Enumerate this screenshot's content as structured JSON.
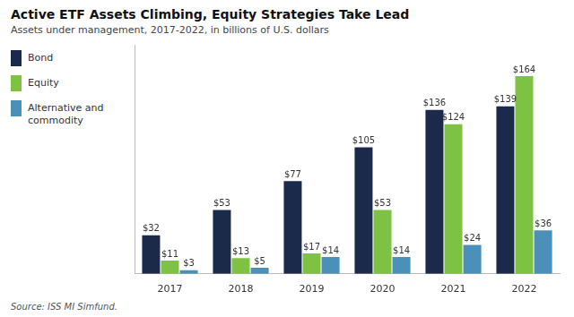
{
  "chart_data": {
    "type": "bar",
    "title": "Active ETF Assets Climbing, Equity Strategies Take Lead",
    "subtitle": "Assets under management, 2017-2022, in billions of U.S. dollars",
    "annotations": [
      "Source: ISS MI Simfund."
    ],
    "categories": [
      "2017",
      "2018",
      "2019",
      "2020",
      "2021",
      "2022"
    ],
    "series": [
      {
        "name": "Bond",
        "color": "#1b2a4a",
        "values": [
          32,
          53,
          77,
          105,
          136,
          139
        ],
        "value_labels": [
          "$32",
          "$53",
          "$77",
          "$105",
          "$136",
          "$139"
        ]
      },
      {
        "name": "Equity",
        "color": "#7dc242",
        "values": [
          11,
          13,
          17,
          53,
          124,
          164
        ],
        "value_labels": [
          "$11",
          "$13",
          "$17",
          "$53",
          "$124",
          "$164"
        ]
      },
      {
        "name": "Alternative and\ncommodity",
        "color": "#4a90b8",
        "values": [
          3,
          5,
          14,
          14,
          24,
          36
        ],
        "value_labels": [
          "$3",
          "$5",
          "$14",
          "$14",
          "$24",
          "$36"
        ]
      }
    ],
    "ylim": [
      0,
      190
    ],
    "grid": false,
    "legend": "left",
    "data_labels": true,
    "tick_labels": "x"
  }
}
